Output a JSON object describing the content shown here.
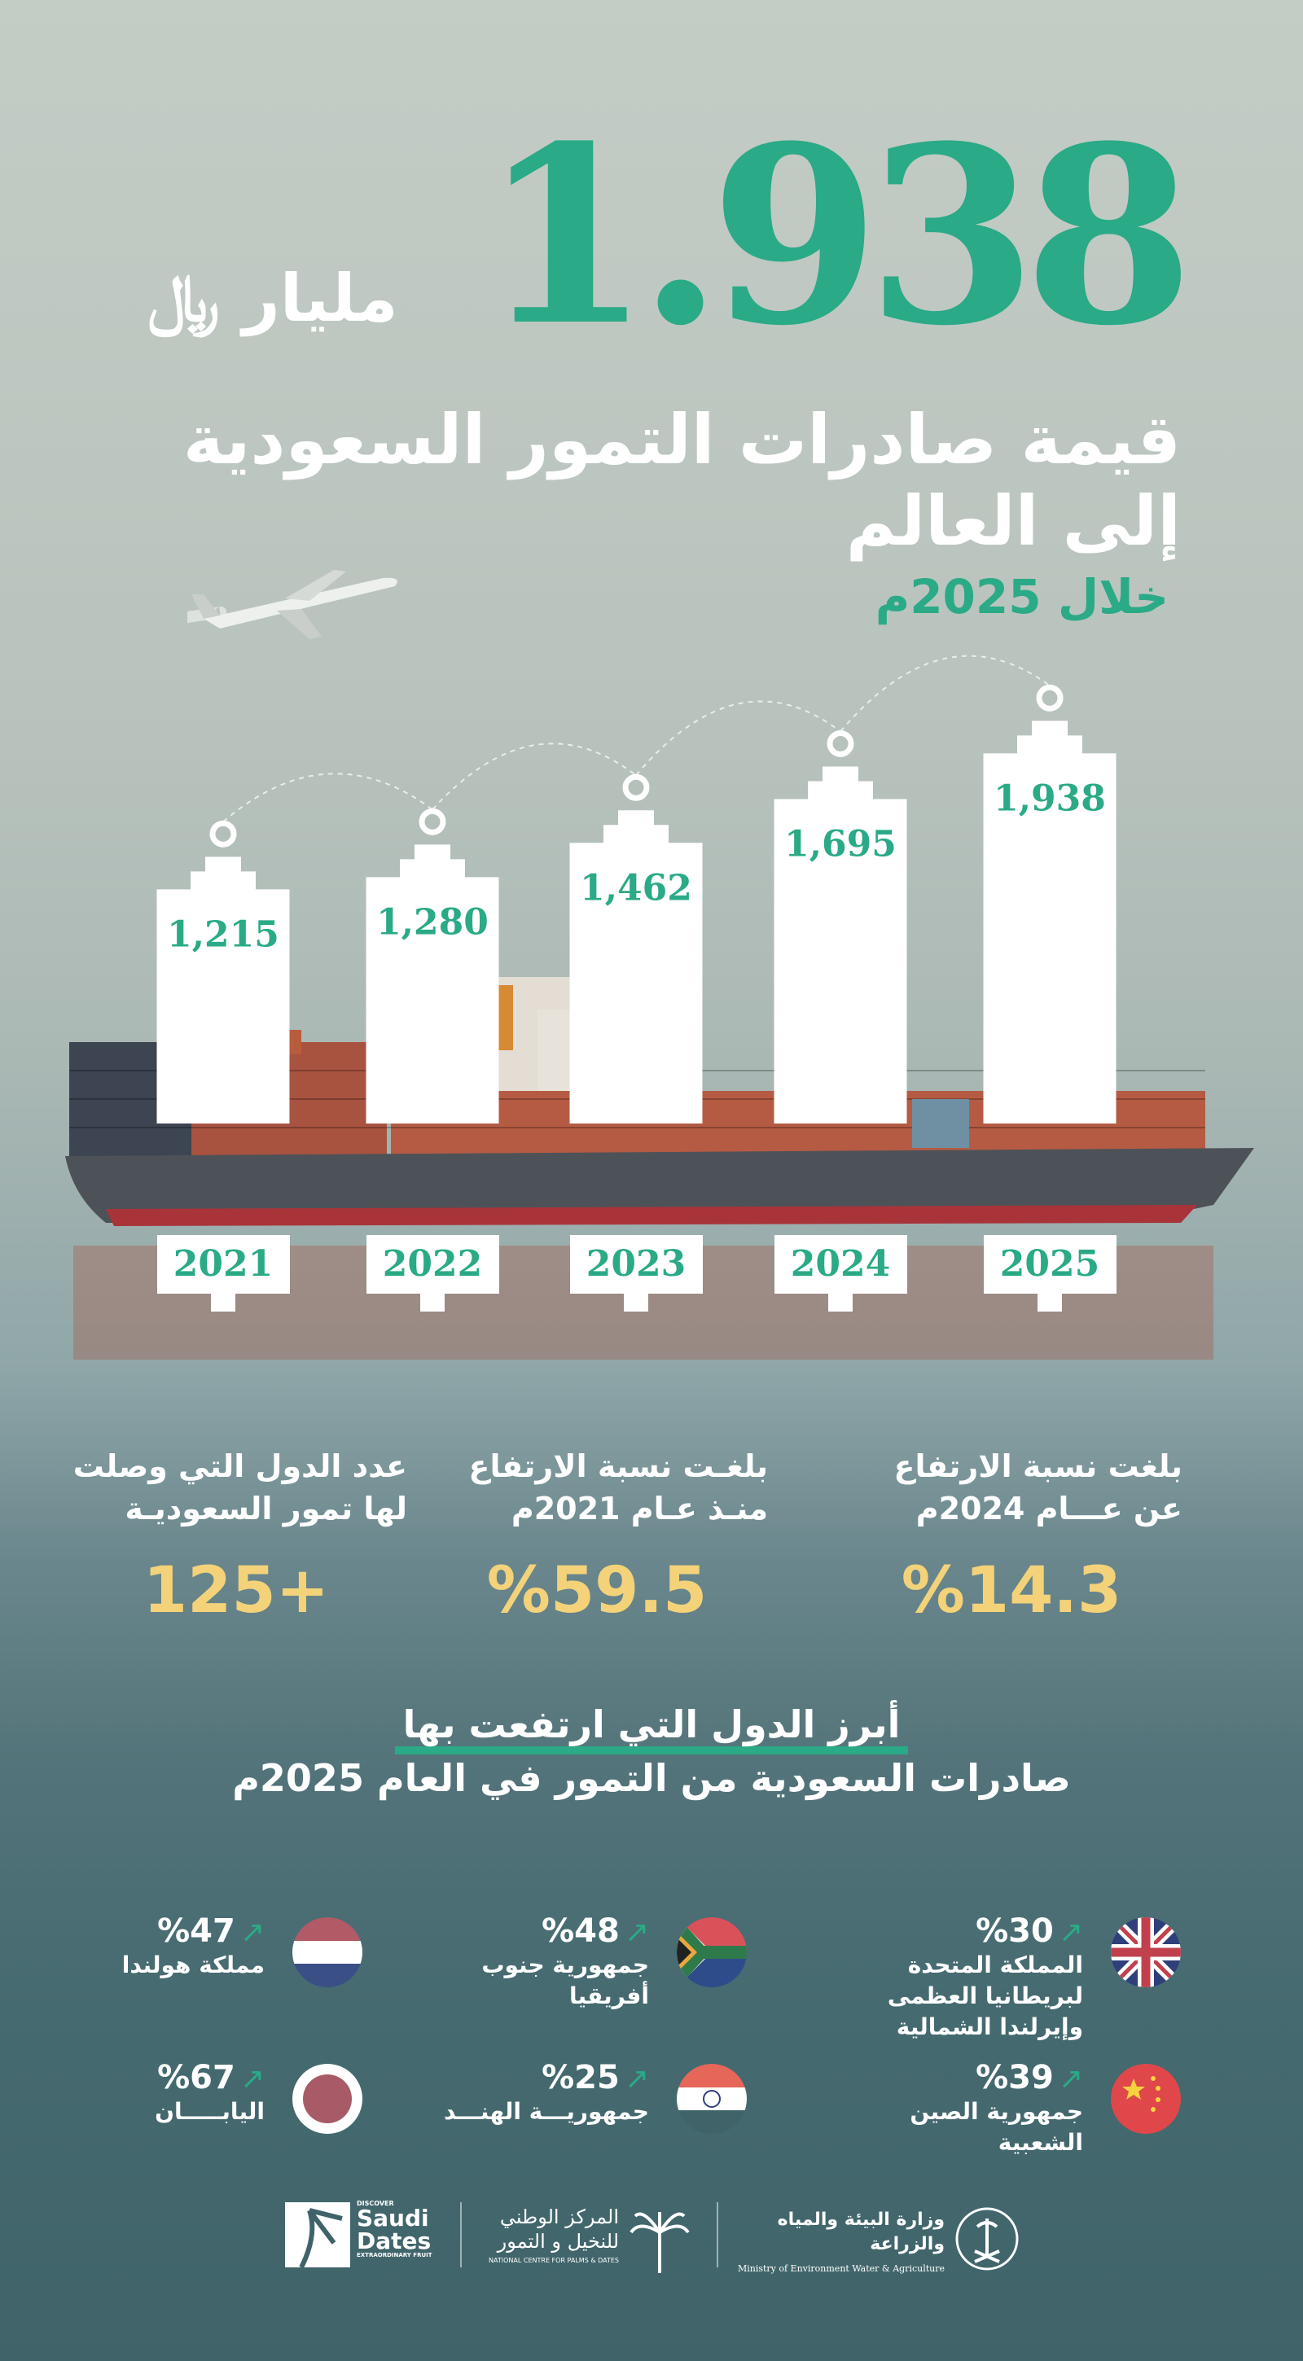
{
  "header": {
    "total_value": "1.938",
    "unit": "مليار ﷼",
    "headline": "قيمة صادرات التمور السعودية إلى العالم",
    "period": "خلال 2025م"
  },
  "chart_data": {
    "type": "bar",
    "categories": [
      "2021",
      "2022",
      "2023",
      "2024",
      "2025"
    ],
    "values": [
      1215,
      1280,
      1462,
      1695,
      1938
    ],
    "value_labels": [
      "1,215",
      "1,280",
      "1,462",
      "1,695",
      "1,938"
    ],
    "colors": {
      "bar": "#ffffff",
      "label": "#2aaa86"
    }
  },
  "stats": [
    {
      "label": "بلغت نسبة الارتفاع عن عـــام 2024م",
      "value": "%14.3"
    },
    {
      "label": "بلغـت نسبة الارتفاع منـذ عـام 2021م",
      "value": "%59.5"
    },
    {
      "label": "عدد الدول التي وصلت لها تمور السعوديـة",
      "value": "+125"
    }
  ],
  "section": {
    "title_line1": "أبرز الدول التي ارتفعت بها",
    "title_line2": "صادرات السعودية من التمور في العام 2025م"
  },
  "countries": [
    {
      "name": "المملكة المتحدة لبريطانيا العظمى وإيرلندا الشمالية",
      "pct": "%30",
      "flag": "uk-flag"
    },
    {
      "name": "جمهورية جنوب أفريقيا",
      "pct": "%48",
      "flag": "south-africa-flag"
    },
    {
      "name": "مملكة هولندا",
      "pct": "%47",
      "flag": "netherlands-flag"
    },
    {
      "name": "جمهورية الصين الشعبية",
      "pct": "%39",
      "flag": "china-flag"
    },
    {
      "name": "جمهوريـــة الهنـــد",
      "pct": "%25",
      "flag": "india-flag"
    },
    {
      "name": "اليابـــــان",
      "pct": "%67",
      "flag": "japan-flag"
    }
  ],
  "logos": {
    "ministry_ar": "وزارة البيئة والمياه والزراعة",
    "ministry_en": "Ministry of Environment Water & Agriculture",
    "ncpd_ar1": "المركز الوطني",
    "ncpd_ar2": "للنخيل و التمور",
    "ncpd_en": "NATIONAL CENTRE FOR PALMS & DATES",
    "sd_top": "DISCOVER",
    "sd_1": "Saudi",
    "sd_2": "Dates",
    "sd_bottom": "EXTRAORDINARY FRUIT"
  },
  "colors": {
    "accent": "#2aaa86",
    "highlight": "#f3d27a"
  }
}
